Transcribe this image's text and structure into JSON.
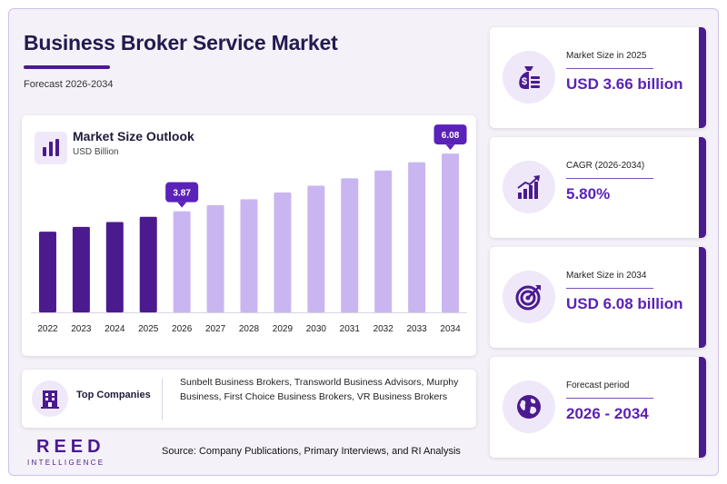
{
  "header": {
    "title": "Business Broker Service Market",
    "subtitle": "Forecast 2026-2034"
  },
  "chart": {
    "title": "Market Size Outlook",
    "unit": "USD Billion"
  },
  "chart_data": {
    "type": "bar",
    "categories": [
      "2022",
      "2023",
      "2024",
      "2025",
      "2026",
      "2027",
      "2028",
      "2029",
      "2030",
      "2031",
      "2032",
      "2033",
      "2034"
    ],
    "values": [
      3.09,
      3.27,
      3.46,
      3.66,
      3.87,
      4.1,
      4.33,
      4.59,
      4.85,
      5.13,
      5.43,
      5.75,
      6.08
    ],
    "historical_count": 4,
    "colors": {
      "historical": "#4b1a8f",
      "forecast": "#c9b6f0",
      "callout": "#5a22b8"
    },
    "data_labels": [
      {
        "category": "2026",
        "text": "3.87"
      },
      {
        "category": "2034",
        "text": "6.08"
      }
    ],
    "ylim": [
      0,
      6.5
    ],
    "grid": false,
    "legend": "none"
  },
  "companies": {
    "label": "Top Companies",
    "list": "Sunbelt Business Brokers, Transworld Business Advisors, Murphy Business, First Choice Business Brokers, VR Business Brokers"
  },
  "kpis": [
    {
      "label": "Market Size in 2025",
      "value": "USD 3.66 billion",
      "icon": "money-bag-icon"
    },
    {
      "label": "CAGR (2026-2034)",
      "value": "5.80%",
      "icon": "growth-chart-icon"
    },
    {
      "label": "Market Size in 2034",
      "value": "USD 6.08 billion",
      "icon": "target-icon"
    },
    {
      "label": "Forecast period",
      "value": "2026 - 2034",
      "icon": "globe-icon"
    }
  ],
  "footer": {
    "source": "Source: Company Publications, Primary Interviews, and RI Analysis",
    "logo_main": "REED",
    "logo_sub": "INTELLIGENCE"
  }
}
